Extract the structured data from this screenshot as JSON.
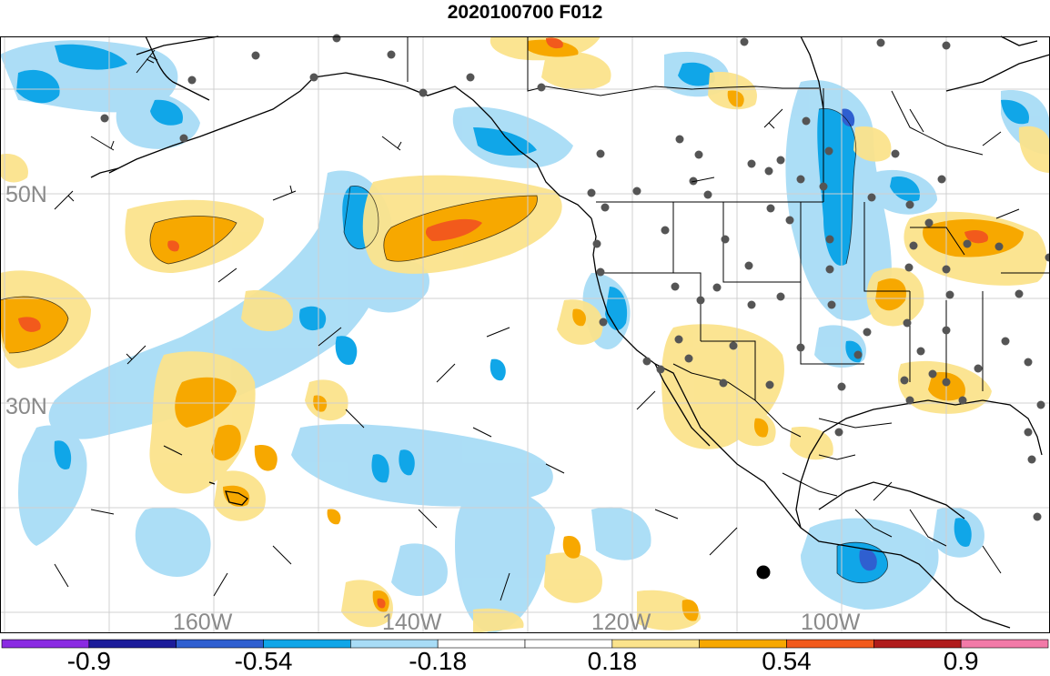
{
  "title": "2020100700 F012",
  "map": {
    "lat_labels": [
      "50N",
      "30N"
    ],
    "lon_labels": [
      "160W",
      "140W",
      "120W",
      "100W"
    ]
  },
  "colorbar": {
    "colors": [
      "#8a2be2",
      "#1c1c9a",
      "#2f5fd0",
      "#10a6e8",
      "#a8dcf6",
      "#ffffff",
      "#ffffff",
      "#fbe38c",
      "#f7a800",
      "#f25a1c",
      "#b01c1c",
      "#f27aa8"
    ],
    "tick_labels": [
      "-0.9",
      "-0.54",
      "-0.18",
      "0.18",
      "0.54",
      "0.9"
    ]
  }
}
